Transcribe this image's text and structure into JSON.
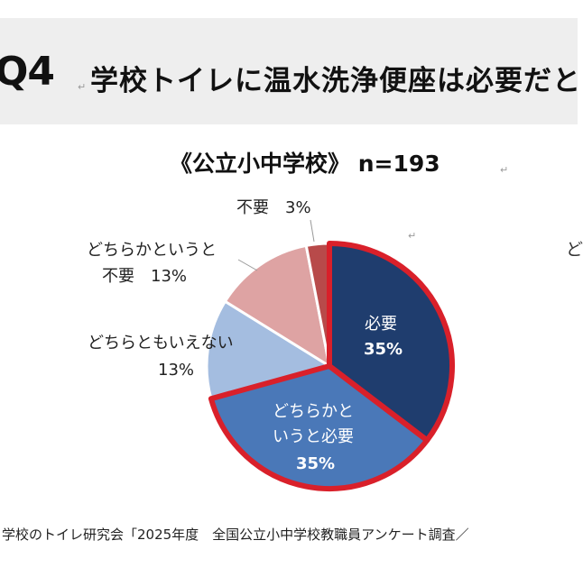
{
  "header": {
    "question_number": "Q4",
    "question_text": "学校トイレに温水洗浄便座は必要だと"
  },
  "chart_data": {
    "type": "pie",
    "title": "《公立小中学校》 n=193",
    "slices": [
      {
        "label": "必要",
        "value": 35,
        "value_text": "35%",
        "color": "#1f3d6e",
        "highlighted": true
      },
      {
        "label": "どちらかというと必要",
        "value": 35,
        "value_text": "35%",
        "color": "#4a78b8",
        "highlighted": true
      },
      {
        "label": "どちらともいえない",
        "value": 13,
        "value_text": "13%",
        "color": "#a4bde0",
        "highlighted": false
      },
      {
        "label": "どちらかというと不要",
        "value": 13,
        "value_text": "13%",
        "color": "#dea3a3",
        "highlighted": false
      },
      {
        "label": "不要",
        "value": 3,
        "value_text": "3%",
        "color": "#b84a4a",
        "highlighted": false
      }
    ],
    "highlight_color": "#d9202a"
  },
  "labels": {
    "hitsuyou": "必要",
    "hitsuyou_pct": "35%",
    "dochiraka_hitsuyou_line1": "どちらかと",
    "dochiraka_hitsuyou_line2": "いうと必要",
    "dochiraka_hitsuyou_pct": "35%",
    "dochiramo": "どちらともいえない",
    "dochiramo_pct": "13%",
    "dochiraka_fuyou_line1": "どちらかというと",
    "dochiraka_fuyou_line2": "不要　13%",
    "fuyou": "不要　3%"
  },
  "edge_text": "ど",
  "footer": {
    "source": "学校のトイレ研究会「2025年度　全国公立小中学校教職員アンケート調査／"
  }
}
